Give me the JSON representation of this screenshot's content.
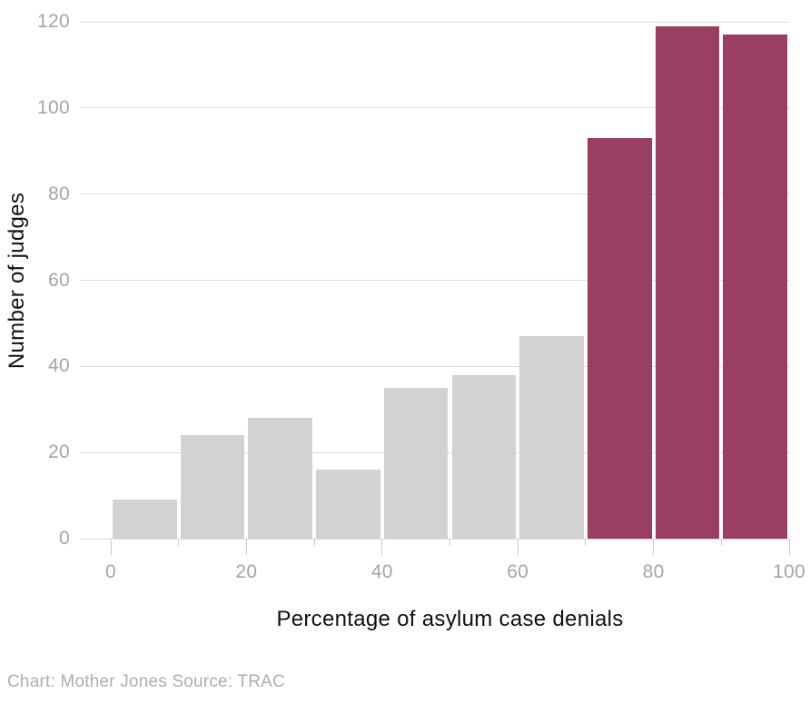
{
  "caption": "Chart: Mother Jones Source: TRAC",
  "chart_data": {
    "type": "bar",
    "subtype": "histogram",
    "xlabel": "Percentage of asylum case denials",
    "ylabel": "Number of judges",
    "xlim": [
      0,
      100
    ],
    "ylim": [
      0,
      120
    ],
    "yticks": [
      0,
      20,
      40,
      60,
      80,
      100,
      120
    ],
    "xticks_major": [
      0,
      20,
      40,
      60,
      80,
      100
    ],
    "xticks_minor": [
      10,
      30,
      50,
      70,
      90
    ],
    "grid": "horizontal",
    "legend": "none",
    "bars": [
      {
        "bin": "0-10",
        "x0": 0,
        "x1": 10,
        "value": 9,
        "color": "#d2d2d2"
      },
      {
        "bin": "10-20",
        "x0": 10,
        "x1": 20,
        "value": 24,
        "color": "#d2d2d2"
      },
      {
        "bin": "20-30",
        "x0": 20,
        "x1": 30,
        "value": 28,
        "color": "#d2d2d2"
      },
      {
        "bin": "30-40",
        "x0": 30,
        "x1": 40,
        "value": 16,
        "color": "#d2d2d2"
      },
      {
        "bin": "40-50",
        "x0": 40,
        "x1": 50,
        "value": 35,
        "color": "#d2d2d2"
      },
      {
        "bin": "50-60",
        "x0": 50,
        "x1": 60,
        "value": 38,
        "color": "#d2d2d2"
      },
      {
        "bin": "60-70",
        "x0": 60,
        "x1": 70,
        "value": 47,
        "color": "#d2d2d2"
      },
      {
        "bin": "70-80",
        "x0": 70,
        "x1": 80,
        "value": 93,
        "color": "#9a3e63"
      },
      {
        "bin": "80-90",
        "x0": 80,
        "x1": 90,
        "value": 119,
        "color": "#9a3e63"
      },
      {
        "bin": "90-100",
        "x0": 90,
        "x1": 100,
        "value": 117,
        "color": "#9a3e63"
      }
    ],
    "colors": {
      "bar_default": "#d2d2d2",
      "bar_highlight": "#9a3e63",
      "gridline": "#dddddd",
      "tick": "#cccccc",
      "tick_label": "#a6a6a6",
      "axis_title": "#111111",
      "caption": "#aeaeae",
      "background": "#ffffff"
    }
  }
}
